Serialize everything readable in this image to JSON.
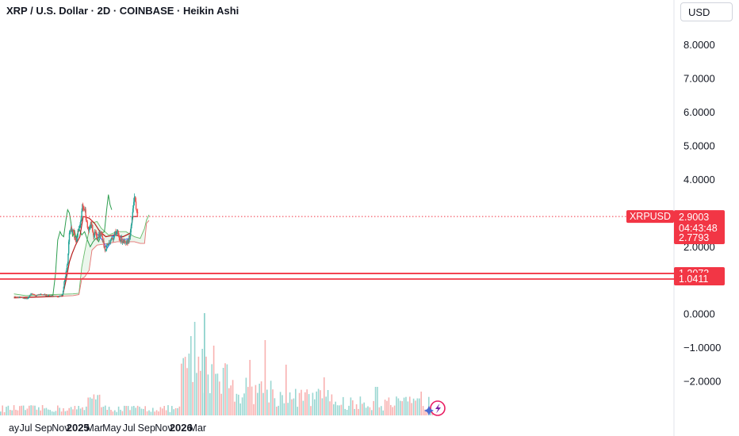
{
  "header": {
    "title": "XRP / U.S. Dollar · 2D · COINBASE · Heikin Ashi",
    "currency": "USD"
  },
  "colors": {
    "up": "#26a69a",
    "down": "#ef5350",
    "price_line": "#f23645",
    "lagging_span": "#2e9e4f",
    "base_line": "#b71c1c",
    "conversion_line": "#2962ff",
    "cloud_up": "#a5d6a7",
    "cloud_down": "#ef9a9a"
  },
  "chart_data": {
    "type": "candlestick",
    "symbol": "XRPUSD",
    "style": "Heikin Ashi",
    "interval": "2D",
    "y_ticks": [
      "8.0000",
      "7.0000",
      "6.0000",
      "5.0000",
      "4.0000",
      "2.0000",
      "0.0000",
      "−1.0000",
      "−2.0000"
    ],
    "x_ticks": [
      {
        "label": "ay",
        "date": "2024-05-20",
        "bold": false
      },
      {
        "label": "Jul",
        "date": "2024-07-01",
        "bold": false
      },
      {
        "label": "Sep",
        "date": "2024-09-01",
        "bold": false
      },
      {
        "label": "Nov",
        "date": "2024-11-01",
        "bold": false
      },
      {
        "label": "2025",
        "date": "2025-01-01",
        "bold": true
      },
      {
        "label": "Mar",
        "date": "2025-03-01",
        "bold": false
      },
      {
        "label": "May",
        "date": "2025-05-01",
        "bold": false
      },
      {
        "label": "Jul",
        "date": "2025-07-01",
        "bold": false
      },
      {
        "label": "Sep",
        "date": "2025-09-01",
        "bold": false
      },
      {
        "label": "Nov",
        "date": "2025-11-01",
        "bold": false
      },
      {
        "label": "2026",
        "date": "2026-01-01",
        "bold": true
      },
      {
        "label": "Mar",
        "date": "2026-03-01",
        "bold": false
      }
    ],
    "price_labels": {
      "symbol": "XRPUSD",
      "last_price": "2.9003",
      "countdown": "04:43:48",
      "second_price": "2.7793"
    },
    "horizontal_levels": [
      {
        "label": "1.2073",
        "value": 1.2073
      },
      {
        "label": "1.0411",
        "value": 1.0411
      }
    ],
    "price_path": [
      [
        "2024-05-20",
        0.52
      ],
      [
        "2024-06-10",
        0.5
      ],
      [
        "2024-07-05",
        0.45
      ],
      [
        "2024-07-20",
        0.6
      ],
      [
        "2024-08-05",
        0.55
      ],
      [
        "2024-08-25",
        0.58
      ],
      [
        "2024-09-15",
        0.56
      ],
      [
        "2024-10-05",
        0.54
      ],
      [
        "2024-10-25",
        0.52
      ],
      [
        "2024-11-08",
        0.58
      ],
      [
        "2024-11-14",
        0.95
      ],
      [
        "2024-11-20",
        1.25
      ],
      [
        "2024-11-26",
        1.5
      ],
      [
        "2024-12-02",
        2.4
      ],
      [
        "2024-12-08",
        2.55
      ],
      [
        "2024-12-14",
        2.45
      ],
      [
        "2024-12-20",
        2.3
      ],
      [
        "2024-12-26",
        2.15
      ],
      [
        "2025-01-02",
        2.45
      ],
      [
        "2025-01-10",
        2.6
      ],
      [
        "2025-01-16",
        3.2
      ],
      [
        "2025-01-22",
        3.15
      ],
      [
        "2025-01-28",
        3.05
      ],
      [
        "2025-02-03",
        2.6
      ],
      [
        "2025-02-09",
        2.45
      ],
      [
        "2025-02-15",
        2.7
      ],
      [
        "2025-02-21",
        2.55
      ],
      [
        "2025-02-27",
        2.3
      ],
      [
        "2025-03-05",
        2.5
      ],
      [
        "2025-03-11",
        2.25
      ],
      [
        "2025-03-17",
        2.35
      ],
      [
        "2025-03-25",
        2.4
      ],
      [
        "2025-04-02",
        2.1
      ],
      [
        "2025-04-08",
        1.85
      ],
      [
        "2025-04-14",
        2.05
      ],
      [
        "2025-04-22",
        2.1
      ],
      [
        "2025-04-28",
        2.25
      ],
      [
        "2025-05-04",
        2.2
      ],
      [
        "2025-05-12",
        2.45
      ],
      [
        "2025-05-20",
        2.4
      ],
      [
        "2025-05-28",
        2.25
      ],
      [
        "2025-06-05",
        2.2
      ],
      [
        "2025-06-13",
        2.15
      ],
      [
        "2025-06-21",
        2.05
      ],
      [
        "2025-06-29",
        2.2
      ],
      [
        "2025-07-07",
        2.4
      ],
      [
        "2025-07-11",
        2.8
      ],
      [
        "2025-07-15",
        3.2
      ],
      [
        "2025-07-19",
        3.5
      ],
      [
        "2025-07-23",
        3.35
      ],
      [
        "2025-07-27",
        3.15
      ],
      [
        "2025-08-02",
        2.9
      ]
    ],
    "lagging_span_path": [
      [
        "2024-09-10",
        0.52
      ],
      [
        "2024-10-05",
        0.56
      ],
      [
        "2024-10-14",
        1.2
      ],
      [
        "2024-10-22",
        2.2
      ],
      [
        "2024-10-30",
        2.45
      ],
      [
        "2024-11-05",
        2.35
      ],
      [
        "2024-11-12",
        2.3
      ],
      [
        "2024-11-20",
        2.8
      ],
      [
        "2024-11-26",
        3.1
      ],
      [
        "2024-12-02",
        3.0
      ],
      [
        "2024-12-08",
        2.7
      ],
      [
        "2024-12-14",
        2.3
      ],
      [
        "2024-12-20",
        2.5
      ],
      [
        "2024-12-26",
        2.25
      ],
      [
        "2025-01-05",
        2.55
      ],
      [
        "2025-01-15",
        2.35
      ],
      [
        "2025-01-25",
        2.45
      ],
      [
        "2025-02-04",
        2.2
      ],
      [
        "2025-02-14",
        2.0
      ],
      [
        "2025-02-24",
        2.15
      ],
      [
        "2025-03-06",
        2.25
      ],
      [
        "2025-03-16",
        2.15
      ],
      [
        "2025-03-26",
        2.4
      ],
      [
        "2025-04-05",
        2.45
      ],
      [
        "2025-04-13",
        3.1
      ],
      [
        "2025-04-19",
        3.55
      ],
      [
        "2025-04-25",
        3.25
      ],
      [
        "2025-05-01",
        3.1
      ]
    ],
    "base_line_path": [
      [
        "2024-05-20",
        0.48
      ],
      [
        "2024-11-08",
        0.53
      ],
      [
        "2024-11-20",
        1.0
      ],
      [
        "2024-12-02",
        1.55
      ],
      [
        "2024-12-12",
        1.8
      ],
      [
        "2024-12-24",
        2.05
      ],
      [
        "2025-01-08",
        2.3
      ],
      [
        "2025-01-20",
        2.9
      ],
      [
        "2025-02-10",
        2.85
      ],
      [
        "2025-03-01",
        2.7
      ],
      [
        "2025-03-20",
        2.45
      ],
      [
        "2025-04-10",
        2.3
      ],
      [
        "2025-05-10",
        2.35
      ],
      [
        "2025-06-10",
        2.3
      ],
      [
        "2025-07-05",
        2.4
      ],
      [
        "2025-07-15",
        2.9
      ],
      [
        "2025-08-02",
        2.9
      ]
    ],
    "conversion_line_path": [
      [
        "2025-03-01",
        2.45
      ],
      [
        "2025-03-20",
        2.3
      ],
      [
        "2025-04-05",
        2.1
      ],
      [
        "2025-04-14",
        1.95
      ],
      [
        "2025-04-22",
        2.05
      ],
      [
        "2025-05-04",
        2.3
      ],
      [
        "2025-05-20",
        2.4
      ],
      [
        "2025-06-10",
        2.2
      ],
      [
        "2025-07-01",
        2.25
      ]
    ],
    "cloud_span_a": [
      [
        "2024-05-20",
        0.6
      ],
      [
        "2024-07-01",
        0.55
      ],
      [
        "2024-10-01",
        0.58
      ],
      [
        "2024-12-15",
        0.6
      ],
      [
        "2025-01-05",
        0.62
      ],
      [
        "2025-01-15",
        1.4
      ],
      [
        "2025-01-25",
        1.85
      ],
      [
        "2025-02-15",
        2.7
      ],
      [
        "2025-03-10",
        2.75
      ],
      [
        "2025-03-25",
        2.55
      ],
      [
        "2025-04-20",
        2.35
      ],
      [
        "2025-05-20",
        2.45
      ],
      [
        "2025-06-20",
        2.45
      ],
      [
        "2025-07-20",
        2.3
      ],
      [
        "2025-08-10",
        2.25
      ],
      [
        "2025-08-25",
        2.55
      ],
      [
        "2025-09-01",
        2.8
      ],
      [
        "2025-09-10",
        2.95
      ]
    ],
    "cloud_span_b": [
      [
        "2024-05-20",
        0.5
      ],
      [
        "2024-10-01",
        0.52
      ],
      [
        "2024-12-15",
        0.55
      ],
      [
        "2025-01-05",
        0.58
      ],
      [
        "2025-01-15",
        1.05
      ],
      [
        "2025-01-25",
        1.1
      ],
      [
        "2025-02-10",
        1.3
      ],
      [
        "2025-02-20",
        1.9
      ],
      [
        "2025-03-10",
        2.05
      ],
      [
        "2025-04-20",
        2.1
      ],
      [
        "2025-05-20",
        2.15
      ],
      [
        "2025-06-20",
        2.15
      ],
      [
        "2025-07-20",
        2.15
      ],
      [
        "2025-08-10",
        2.1
      ],
      [
        "2025-08-25",
        2.1
      ],
      [
        "2025-09-01",
        2.7
      ],
      [
        "2025-09-10",
        2.78
      ]
    ]
  }
}
